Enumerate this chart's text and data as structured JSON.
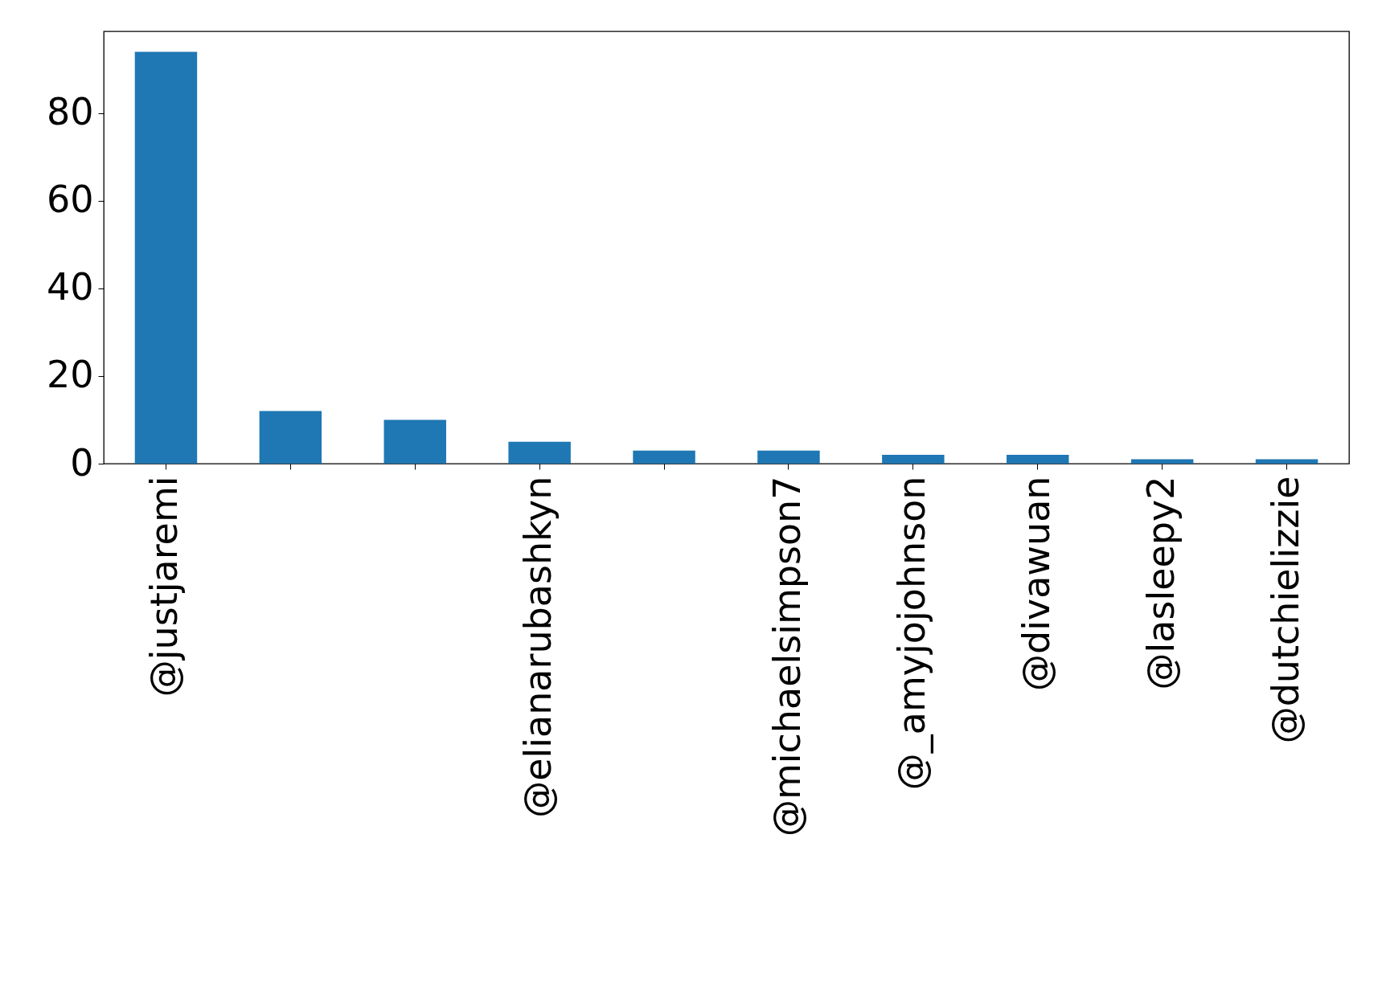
{
  "chart_data": {
    "type": "bar",
    "categories": [
      "@justjaremi",
      null,
      null,
      "@elianarubashkyn",
      null,
      "@michaelsimpson7",
      "@_amyjojohnson",
      "@divawuan",
      "@lasleepy2",
      "@dutchielizzie"
    ],
    "values": [
      94,
      12,
      10,
      5,
      3,
      3,
      2,
      2,
      1,
      1
    ],
    "color": "#1f77b4",
    "ylim": [
      0,
      98.7
    ],
    "yticks": [
      0,
      20,
      40,
      60,
      80
    ],
    "grid": false
  }
}
